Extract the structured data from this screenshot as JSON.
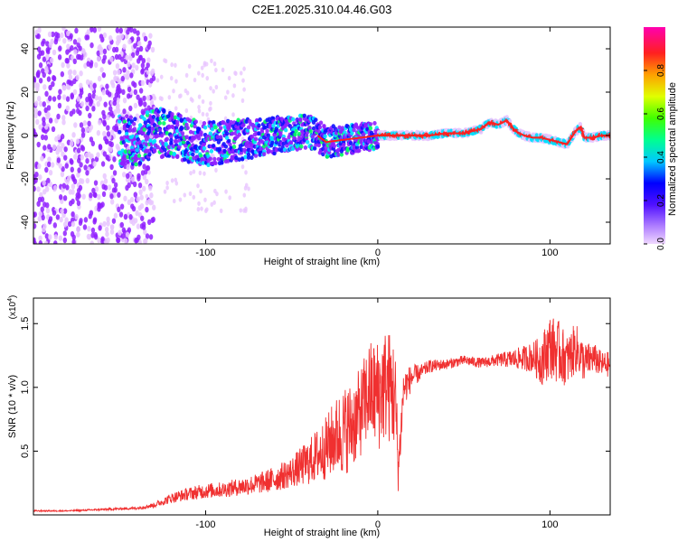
{
  "title": "C2E1.2025.310.04.46.G03",
  "colors": {
    "accent": "#f03030",
    "axis": "#000000",
    "background": "#ffffff"
  },
  "chart_data": [
    {
      "type": "heatmap",
      "title": "C2E1.2025.310.04.46.G03",
      "xlabel": "Height of straight line (km)",
      "ylabel": "Frequency (Hz)",
      "xlim": [
        -200,
        135
      ],
      "ylim": [
        -50,
        50
      ],
      "xticks": [
        -100,
        0,
        100
      ],
      "yticks": [
        -40,
        -20,
        0,
        20,
        40
      ],
      "xtick_labels": [
        "-100",
        "0",
        "100"
      ],
      "ytick_labels": [
        "-40",
        "-20",
        "0",
        "20",
        "40"
      ],
      "ridge": {
        "x": [
          -150,
          -140,
          -130,
          -120,
          -110,
          -100,
          -90,
          -80,
          -70,
          -60,
          -50,
          -40,
          -35,
          -30,
          -20,
          -10,
          0,
          10,
          20,
          30,
          40,
          50,
          55,
          60,
          65,
          70,
          75,
          80,
          85,
          90,
          95,
          100,
          105,
          110,
          115,
          118,
          120,
          125,
          130,
          135
        ],
        "y": [
          -2,
          -3,
          2,
          0,
          -2,
          -4,
          -3,
          -2,
          -1,
          0,
          1,
          2,
          0,
          -3,
          -2,
          -1,
          0,
          0,
          0,
          0,
          1,
          1,
          2,
          3,
          6,
          5,
          7,
          2,
          0,
          -1,
          -1,
          -2,
          -3,
          -4,
          2,
          4,
          -1,
          -1,
          0,
          0
        ]
      },
      "colorbar": {
        "label": "Normalized spectral amplitude",
        "range": [
          0,
          1
        ],
        "ticks": [
          0.0,
          0.2,
          0.4,
          0.6,
          0.8
        ],
        "tick_labels": [
          "0.0",
          "0.2",
          "0.4",
          "0.6",
          "0.8"
        ],
        "colormap": [
          "#e8c6ff",
          "#9020ff",
          "#1010ff",
          "#00e0ff",
          "#00ff60",
          "#ffff00",
          "#ff8000",
          "#ff2020",
          "#ff00c0"
        ]
      }
    },
    {
      "type": "line",
      "xlabel": "Height of straight line (km)",
      "ylabel": "SNR (10 * v/v)",
      "scale_label": "(x10",
      "scale_exponent": "4",
      "scale_suffix": ")",
      "xlim": [
        -200,
        135
      ],
      "ylim": [
        0,
        1.7
      ],
      "xticks": [
        -100,
        0,
        100
      ],
      "yticks": [
        0.5,
        1.0,
        1.5
      ],
      "xtick_labels": [
        "-100",
        "0",
        "100"
      ],
      "ytick_labels": [
        "0.5",
        "1.0",
        "1.5"
      ],
      "series": [
        {
          "name": "SNR",
          "color": "#f03030",
          "x": [
            -200,
            -180,
            -160,
            -140,
            -130,
            -120,
            -110,
            -100,
            -90,
            -80,
            -70,
            -60,
            -50,
            -40,
            -30,
            -25,
            -20,
            -15,
            -10,
            -5,
            0,
            5,
            10,
            12,
            15,
            20,
            25,
            30,
            40,
            50,
            60,
            70,
            80,
            90,
            95,
            100,
            105,
            110,
            115,
            120,
            125,
            130,
            135
          ],
          "y": [
            0.03,
            0.03,
            0.04,
            0.05,
            0.07,
            0.12,
            0.15,
            0.17,
            0.18,
            0.2,
            0.22,
            0.25,
            0.3,
            0.36,
            0.45,
            0.52,
            0.55,
            0.6,
            0.7,
            0.85,
            0.8,
            0.9,
            0.8,
            0.3,
            0.95,
            1.05,
            1.1,
            1.15,
            1.17,
            1.2,
            1.18,
            1.2,
            1.2,
            1.2,
            1.15,
            1.25,
            1.2,
            1.15,
            1.25,
            1.15,
            1.2,
            1.15,
            1.15
          ],
          "noise": [
            0.005,
            0.005,
            0.008,
            0.01,
            0.02,
            0.04,
            0.05,
            0.06,
            0.06,
            0.07,
            0.08,
            0.1,
            0.12,
            0.18,
            0.25,
            0.3,
            0.35,
            0.35,
            0.35,
            0.4,
            0.45,
            0.45,
            0.45,
            0.2,
            0.15,
            0.1,
            0.06,
            0.05,
            0.04,
            0.04,
            0.04,
            0.05,
            0.08,
            0.12,
            0.2,
            0.25,
            0.25,
            0.2,
            0.2,
            0.15,
            0.12,
            0.1,
            0.1
          ]
        }
      ]
    }
  ]
}
